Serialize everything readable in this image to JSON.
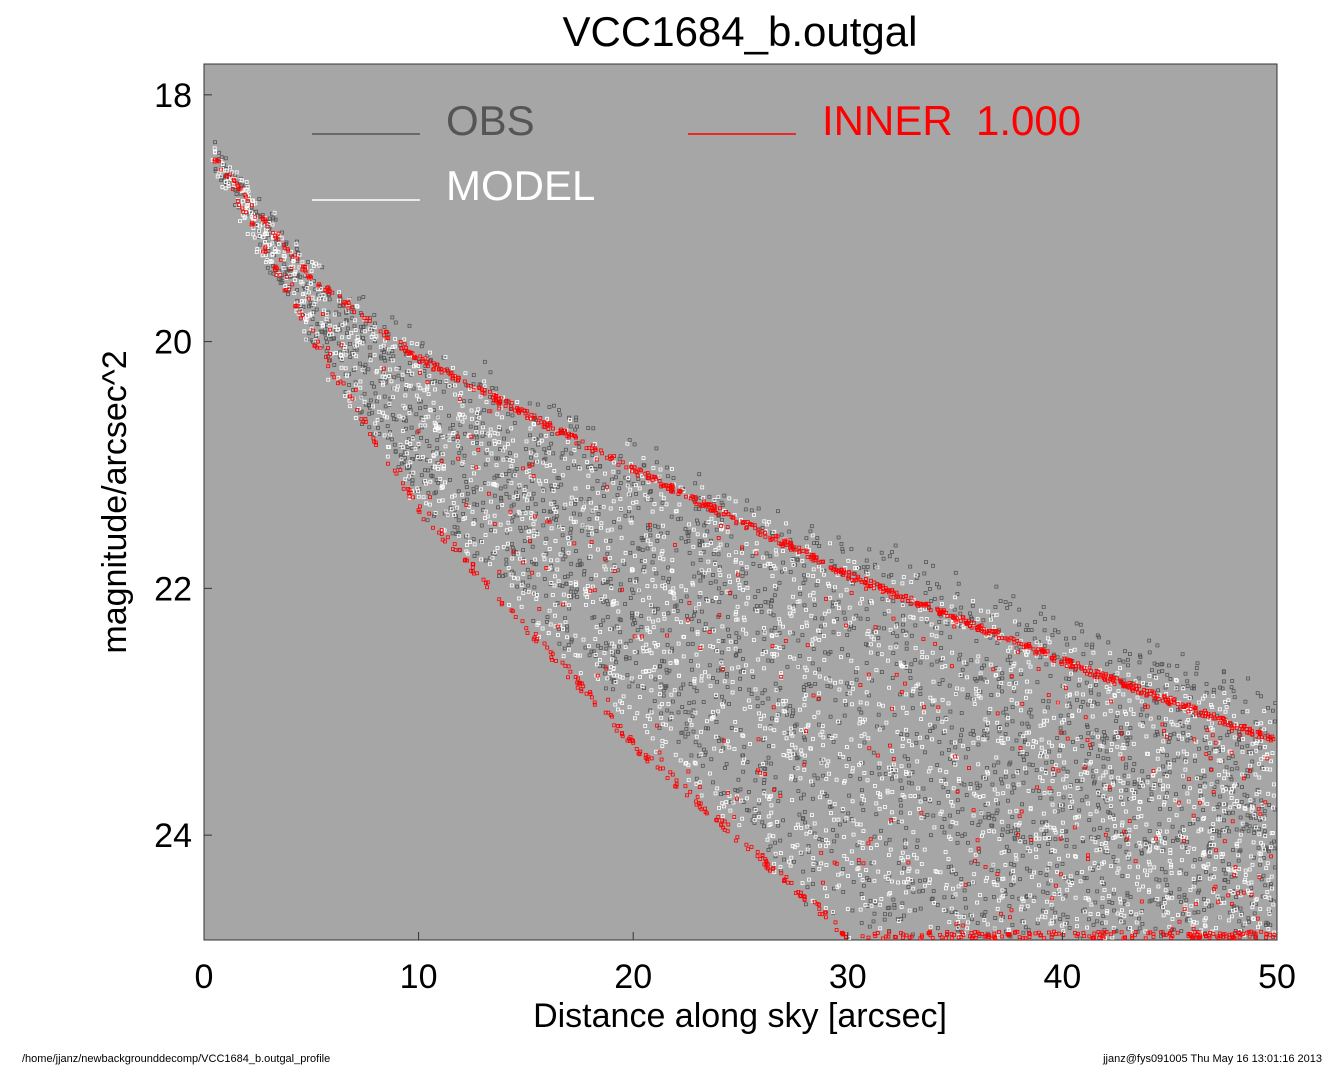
{
  "chart_data": {
    "type": "scatter",
    "title": "VCC1684_b.outgal",
    "xlabel": "Distance along sky [arcsec]",
    "ylabel": "magnitude/arcsec^2",
    "xlim": [
      0,
      50
    ],
    "ylim": [
      24.85,
      17.75
    ],
    "y_inverted": true,
    "xticks": [
      "0",
      "10",
      "20",
      "30",
      "40",
      "50"
    ],
    "yticks": [
      "18",
      "20",
      "22",
      "24"
    ],
    "background": "#a6a6a6",
    "grid": false,
    "legend_position": "top",
    "series": [
      {
        "name": "OBS",
        "color": "#555555",
        "profile": {
          "x": [
            0.3,
            5,
            10,
            20,
            30,
            40,
            50
          ],
          "y_bright": [
            18.45,
            19.4,
            20.0,
            20.85,
            21.6,
            22.25,
            22.85
          ],
          "y_faint": [
            18.5,
            20.0,
            21.3,
            22.95,
            24.85,
            24.85,
            24.85
          ]
        }
      },
      {
        "name": "MODEL",
        "color": "#ffffff",
        "profile": {
          "x": [
            0.3,
            5,
            10,
            20,
            30,
            40,
            50
          ],
          "y_bright": [
            18.45,
            19.4,
            20.05,
            20.95,
            21.75,
            22.45,
            23.05
          ],
          "y_faint": [
            18.5,
            20.0,
            21.3,
            23.1,
            24.85,
            24.85,
            24.85
          ]
        }
      },
      {
        "name": "INNER  1.000",
        "color": "#ff0000",
        "profile": {
          "x": [
            0.3,
            5,
            10,
            20,
            30,
            40,
            50
          ],
          "y_bright": [
            18.45,
            19.45,
            20.1,
            21.0,
            21.85,
            22.55,
            23.2
          ],
          "y_faint": [
            18.5,
            20.0,
            21.4,
            23.3,
            24.85,
            24.85,
            24.85
          ]
        }
      }
    ]
  },
  "footer": {
    "path": "/home/jjanz/newbackgrounddecomp/VCC1684_b.outgal_profile",
    "stamp": "jjanz@fys091005  Thu May 16 13:01:16 2013"
  }
}
